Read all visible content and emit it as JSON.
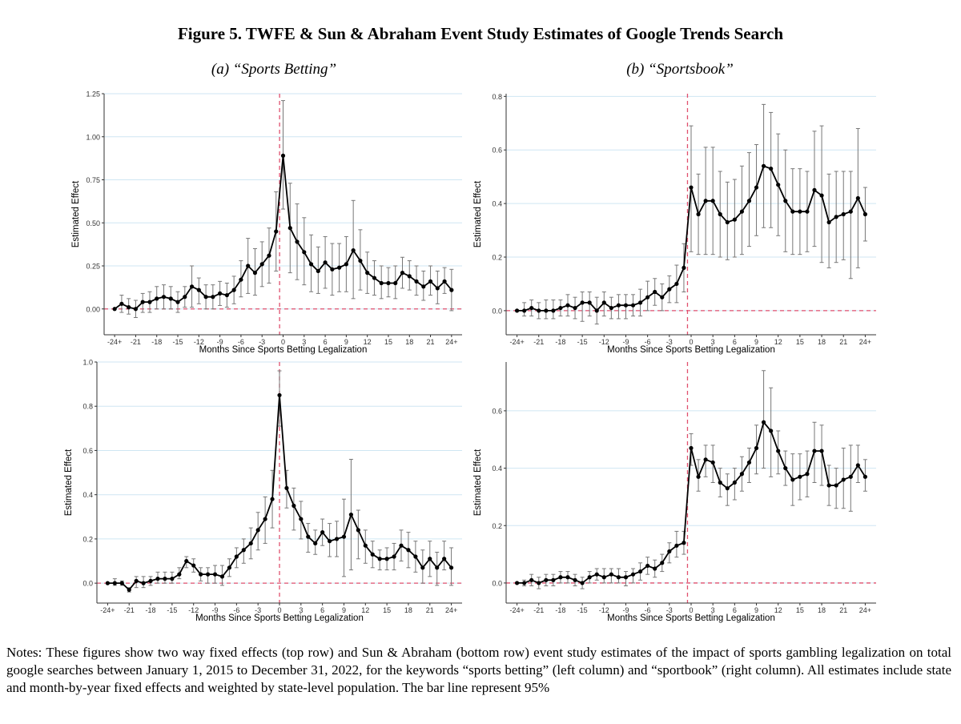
{
  "figure": {
    "title": "Figure 5. TWFE & Sun & Abraham Event Study Estimates of Google Trends Search",
    "panel_a_title": "(a) “Sports Betting”",
    "panel_b_title": "(b) “Sportsbook”"
  },
  "notes": "Notes: These figures show two way fixed effects (top row) and Sun & Abraham (bottom row) event study estimates of the impact of sports gambling legalization on total google searches between January 1, 2015 to December 31, 2022, for the keywords “sports betting” (left column) and “sportbook” (right column). All estimates include state and month-by-year fixed effects and weighted by state-level population. The bar line represent 95%",
  "chart_data": [
    {
      "id": "twfe-sports-betting",
      "type": "line",
      "title": "",
      "xlabel": "Months Since Sports Betting Legalization",
      "ylabel": "Estimated Effect",
      "xlim": [
        -25.5,
        25.5
      ],
      "ylim": [
        -0.15,
        1.25
      ],
      "yticks": [
        0.0,
        0.25,
        0.5,
        0.75,
        1.0,
        1.25
      ],
      "ytick_labels": [
        "0.00",
        "0.25",
        "0.50",
        "0.75",
        "1.00",
        "1.25"
      ],
      "xtick_positions": [
        -24,
        -21,
        -18,
        -15,
        -12,
        -9,
        -6,
        -3,
        0,
        3,
        6,
        9,
        12,
        15,
        18,
        21,
        24
      ],
      "xtick_labels": [
        "-24+",
        "-21",
        "-18",
        "-15",
        "-12",
        "-9",
        "-6",
        "-3",
        "0",
        "3",
        "6",
        "9",
        "12",
        "15",
        "18",
        "21",
        "24+"
      ],
      "reference_x": -0.5,
      "reference_y": 0,
      "x": [
        -24,
        -23,
        -22,
        -21,
        -20,
        -19,
        -18,
        -17,
        -16,
        -15,
        -14,
        -13,
        -12,
        -11,
        -10,
        -9,
        -8,
        -7,
        -6,
        -5,
        -4,
        -3,
        -2,
        -1,
        0,
        1,
        2,
        3,
        4,
        5,
        6,
        7,
        8,
        9,
        10,
        11,
        12,
        13,
        14,
        15,
        16,
        17,
        18,
        19,
        20,
        21,
        22,
        23,
        24
      ],
      "values": [
        0.0,
        0.03,
        0.01,
        0.0,
        0.04,
        0.04,
        0.06,
        0.07,
        0.06,
        0.04,
        0.07,
        0.13,
        0.11,
        0.07,
        0.07,
        0.09,
        0.08,
        0.11,
        0.17,
        0.25,
        0.21,
        0.26,
        0.31,
        0.45,
        0.89,
        0.47,
        0.39,
        0.33,
        0.26,
        0.22,
        0.27,
        0.23,
        0.24,
        0.26,
        0.34,
        0.28,
        0.21,
        0.18,
        0.15,
        0.15,
        0.15,
        0.21,
        0.19,
        0.16,
        0.13,
        0.16,
        0.12,
        0.16,
        0.11
      ],
      "ci_lower": [
        0.0,
        -0.02,
        -0.03,
        -0.05,
        -0.02,
        -0.02,
        0.0,
        0.0,
        0.0,
        -0.02,
        0.01,
        0.01,
        0.03,
        0.0,
        0.0,
        0.02,
        0.01,
        0.03,
        0.07,
        0.09,
        0.08,
        0.13,
        0.15,
        0.22,
        0.58,
        0.21,
        0.17,
        0.14,
        0.1,
        0.09,
        0.12,
        0.08,
        0.1,
        0.1,
        0.06,
        0.11,
        0.09,
        0.08,
        0.06,
        0.07,
        0.06,
        0.12,
        0.11,
        0.08,
        0.05,
        0.08,
        0.03,
        0.09,
        -0.01
      ],
      "ci_upper": [
        0.0,
        0.08,
        0.06,
        0.05,
        0.09,
        0.1,
        0.13,
        0.14,
        0.13,
        0.1,
        0.13,
        0.25,
        0.18,
        0.14,
        0.14,
        0.16,
        0.15,
        0.19,
        0.28,
        0.41,
        0.35,
        0.39,
        0.47,
        0.68,
        1.21,
        0.73,
        0.61,
        0.53,
        0.43,
        0.36,
        0.42,
        0.38,
        0.38,
        0.42,
        0.63,
        0.46,
        0.33,
        0.28,
        0.25,
        0.24,
        0.25,
        0.3,
        0.28,
        0.25,
        0.22,
        0.25,
        0.22,
        0.24,
        0.23
      ]
    },
    {
      "id": "twfe-sportsbook",
      "type": "line",
      "title": "",
      "xlabel": "Months Since Sports Betting Legalization",
      "ylabel": "Estimated Effect",
      "xlim": [
        -25.5,
        25.5
      ],
      "ylim": [
        -0.09,
        0.81
      ],
      "yticks": [
        0.0,
        0.2,
        0.4,
        0.6,
        0.8
      ],
      "ytick_labels": [
        "0.0",
        "0.2",
        "0.4",
        "0.6",
        "0.8"
      ],
      "xtick_positions": [
        -24,
        -21,
        -18,
        -15,
        -12,
        -9,
        -6,
        -3,
        0,
        3,
        6,
        9,
        12,
        15,
        18,
        21,
        24
      ],
      "xtick_labels": [
        "-24+",
        "-21",
        "-18",
        "-15",
        "-12",
        "-9",
        "-6",
        "-3",
        "0",
        "3",
        "6",
        "9",
        "12",
        "15",
        "18",
        "21",
        "24+"
      ],
      "reference_x": -0.5,
      "reference_y": 0,
      "x": [
        -24,
        -23,
        -22,
        -21,
        -20,
        -19,
        -18,
        -17,
        -16,
        -15,
        -14,
        -13,
        -12,
        -11,
        -10,
        -9,
        -8,
        -7,
        -6,
        -5,
        -4,
        -3,
        -2,
        -1,
        0,
        1,
        2,
        3,
        4,
        5,
        6,
        7,
        8,
        9,
        10,
        11,
        12,
        13,
        14,
        15,
        16,
        17,
        18,
        19,
        20,
        21,
        22,
        23,
        24
      ],
      "values": [
        0.0,
        0.0,
        0.01,
        0.0,
        0.0,
        0.0,
        0.01,
        0.02,
        0.01,
        0.03,
        0.03,
        0.0,
        0.03,
        0.01,
        0.02,
        0.02,
        0.02,
        0.03,
        0.05,
        0.07,
        0.05,
        0.08,
        0.1,
        0.16,
        0.46,
        0.36,
        0.41,
        0.41,
        0.36,
        0.33,
        0.34,
        0.37,
        0.41,
        0.46,
        0.54,
        0.53,
        0.47,
        0.41,
        0.37,
        0.37,
        0.37,
        0.45,
        0.43,
        0.33,
        0.35,
        0.36,
        0.37,
        0.42,
        0.36
      ],
      "ci_lower": [
        0.0,
        -0.02,
        -0.02,
        -0.03,
        -0.03,
        -0.03,
        -0.02,
        -0.02,
        -0.03,
        -0.04,
        -0.02,
        -0.05,
        -0.02,
        -0.03,
        -0.03,
        -0.03,
        -0.02,
        -0.02,
        0.0,
        0.02,
        0.0,
        0.03,
        0.03,
        0.07,
        0.22,
        0.21,
        0.21,
        0.21,
        0.2,
        0.19,
        0.2,
        0.21,
        0.24,
        0.28,
        0.31,
        0.31,
        0.28,
        0.22,
        0.21,
        0.21,
        0.22,
        0.24,
        0.18,
        0.16,
        0.18,
        0.19,
        0.12,
        0.16,
        0.26
      ],
      "ci_upper": [
        0.0,
        0.03,
        0.04,
        0.03,
        0.04,
        0.04,
        0.04,
        0.06,
        0.05,
        0.07,
        0.07,
        0.05,
        0.07,
        0.05,
        0.06,
        0.06,
        0.06,
        0.08,
        0.11,
        0.12,
        0.1,
        0.13,
        0.17,
        0.25,
        0.69,
        0.51,
        0.61,
        0.61,
        0.52,
        0.48,
        0.49,
        0.54,
        0.59,
        0.62,
        0.77,
        0.74,
        0.66,
        0.6,
        0.53,
        0.53,
        0.52,
        0.67,
        0.69,
        0.51,
        0.52,
        0.52,
        0.52,
        0.68,
        0.46
      ]
    },
    {
      "id": "sunab-sports-betting",
      "type": "line",
      "title": "",
      "xlabel": "Months Since Sports Betting Legalization",
      "ylabel": "Estimated Effect",
      "xlim": [
        -25.5,
        25.5
      ],
      "ylim": [
        -0.09,
        1.0
      ],
      "yticks": [
        0.0,
        0.2,
        0.4,
        0.6,
        0.8,
        1.0
      ],
      "ytick_labels": [
        "0.0",
        "0.2",
        "0.4",
        "0.6",
        "0.8",
        "1.0"
      ],
      "xtick_positions": [
        -24,
        -21,
        -18,
        -15,
        -12,
        -9,
        -6,
        -3,
        0,
        3,
        6,
        9,
        12,
        15,
        18,
        21,
        24
      ],
      "xtick_labels": [
        "-24+",
        "-21",
        "-18",
        "-15",
        "-12",
        "-9",
        "-6",
        "-3",
        "0",
        "3",
        "6",
        "9",
        "12",
        "15",
        "18",
        "21",
        "24+"
      ],
      "reference_x": 0,
      "reference_y": 0,
      "x": [
        -24,
        -23,
        -22,
        -21,
        -20,
        -19,
        -18,
        -17,
        -16,
        -15,
        -14,
        -13,
        -12,
        -11,
        -10,
        -9,
        -8,
        -7,
        -6,
        -5,
        -4,
        -3,
        -2,
        -1,
        0,
        1,
        2,
        3,
        4,
        5,
        6,
        7,
        8,
        9,
        10,
        11,
        12,
        13,
        14,
        15,
        16,
        17,
        18,
        19,
        20,
        21,
        22,
        23,
        24
      ],
      "values": [
        0.0,
        0.0,
        0.0,
        -0.03,
        0.01,
        0.0,
        0.01,
        0.02,
        0.02,
        0.02,
        0.04,
        0.1,
        0.08,
        0.04,
        0.04,
        0.04,
        0.03,
        0.07,
        0.12,
        0.15,
        0.18,
        0.24,
        0.29,
        0.38,
        0.85,
        0.43,
        0.35,
        0.29,
        0.21,
        0.18,
        0.23,
        0.19,
        0.2,
        0.21,
        0.31,
        0.24,
        0.17,
        0.13,
        0.11,
        0.11,
        0.12,
        0.17,
        0.15,
        0.12,
        0.07,
        0.11,
        0.07,
        0.11,
        0.07
      ],
      "ci_lower": [
        0.0,
        -0.01,
        -0.01,
        -0.04,
        -0.02,
        -0.02,
        -0.01,
        0.0,
        0.0,
        0.0,
        0.02,
        0.07,
        0.05,
        0.01,
        0.0,
        0.0,
        -0.01,
        0.03,
        0.07,
        0.09,
        0.11,
        0.15,
        0.18,
        0.25,
        0.71,
        0.34,
        0.24,
        0.2,
        0.14,
        0.13,
        0.17,
        0.12,
        0.12,
        0.03,
        0.06,
        0.11,
        0.09,
        0.07,
        0.06,
        0.06,
        0.06,
        0.1,
        0.07,
        0.05,
        0.0,
        0.03,
        -0.01,
        0.06,
        -0.01
      ],
      "ci_upper": [
        0.0,
        0.02,
        0.01,
        -0.02,
        0.03,
        0.03,
        0.03,
        0.05,
        0.05,
        0.05,
        0.07,
        0.12,
        0.11,
        0.07,
        0.07,
        0.08,
        0.08,
        0.11,
        0.16,
        0.2,
        0.25,
        0.32,
        0.39,
        0.51,
        0.96,
        0.51,
        0.43,
        0.37,
        0.27,
        0.24,
        0.29,
        0.27,
        0.28,
        0.38,
        0.56,
        0.33,
        0.24,
        0.19,
        0.15,
        0.16,
        0.18,
        0.24,
        0.23,
        0.19,
        0.15,
        0.19,
        0.14,
        0.19,
        0.16
      ]
    },
    {
      "id": "sunab-sportsbook",
      "type": "line",
      "title": "",
      "xlabel": "Months Since Sports Betting Legalization",
      "ylabel": "Estimated Effect",
      "xlim": [
        -25.5,
        25.5
      ],
      "ylim": [
        -0.07,
        0.77
      ],
      "yticks": [
        0.0,
        0.2,
        0.4,
        0.6
      ],
      "ytick_labels": [
        "0.0",
        "0.2",
        "0.4",
        "0.6"
      ],
      "xtick_positions": [
        -24,
        -21,
        -18,
        -15,
        -12,
        -9,
        -6,
        -3,
        0,
        3,
        6,
        9,
        12,
        15,
        18,
        21,
        24
      ],
      "xtick_labels": [
        "-24+",
        "-21",
        "-18",
        "-15",
        "-12",
        "-9",
        "-6",
        "-3",
        "0",
        "3",
        "6",
        "9",
        "12",
        "15",
        "18",
        "21",
        "24+"
      ],
      "reference_x": -0.5,
      "reference_y": 0,
      "x": [
        -24,
        -23,
        -22,
        -21,
        -20,
        -19,
        -18,
        -17,
        -16,
        -15,
        -14,
        -13,
        -12,
        -11,
        -10,
        -9,
        -8,
        -7,
        -6,
        -5,
        -4,
        -3,
        -2,
        -1,
        0,
        1,
        2,
        3,
        4,
        5,
        6,
        7,
        8,
        9,
        10,
        11,
        12,
        13,
        14,
        15,
        16,
        17,
        18,
        19,
        20,
        21,
        22,
        23,
        24
      ],
      "values": [
        0.0,
        0.0,
        0.01,
        0.0,
        0.01,
        0.01,
        0.02,
        0.02,
        0.01,
        0.0,
        0.02,
        0.03,
        0.02,
        0.03,
        0.02,
        0.02,
        0.03,
        0.04,
        0.06,
        0.05,
        0.07,
        0.11,
        0.13,
        0.14,
        0.47,
        0.37,
        0.43,
        0.42,
        0.35,
        0.33,
        0.35,
        0.38,
        0.42,
        0.47,
        0.56,
        0.53,
        0.46,
        0.4,
        0.36,
        0.37,
        0.38,
        0.46,
        0.46,
        0.34,
        0.34,
        0.36,
        0.37,
        0.41,
        0.37
      ],
      "ci_lower": [
        0.0,
        -0.01,
        -0.01,
        -0.02,
        -0.01,
        -0.01,
        0.0,
        0.0,
        -0.01,
        -0.02,
        0.0,
        0.01,
        0.0,
        0.0,
        0.0,
        -0.01,
        0.0,
        0.01,
        0.03,
        0.02,
        0.04,
        0.07,
        0.09,
        0.1,
        0.41,
        0.32,
        0.37,
        0.35,
        0.3,
        0.27,
        0.29,
        0.32,
        0.35,
        0.38,
        0.4,
        0.37,
        0.38,
        0.34,
        0.27,
        0.29,
        0.3,
        0.35,
        0.34,
        0.27,
        0.26,
        0.26,
        0.25,
        0.35,
        0.32
      ],
      "ci_upper": [
        0.0,
        0.01,
        0.03,
        0.02,
        0.03,
        0.03,
        0.04,
        0.04,
        0.03,
        0.02,
        0.04,
        0.05,
        0.05,
        0.05,
        0.05,
        0.04,
        0.05,
        0.07,
        0.09,
        0.08,
        0.1,
        0.14,
        0.18,
        0.18,
        0.52,
        0.43,
        0.48,
        0.48,
        0.4,
        0.38,
        0.4,
        0.44,
        0.47,
        0.55,
        0.74,
        0.68,
        0.53,
        0.46,
        0.45,
        0.45,
        0.46,
        0.56,
        0.55,
        0.41,
        0.4,
        0.47,
        0.48,
        0.48,
        0.43
      ]
    }
  ]
}
